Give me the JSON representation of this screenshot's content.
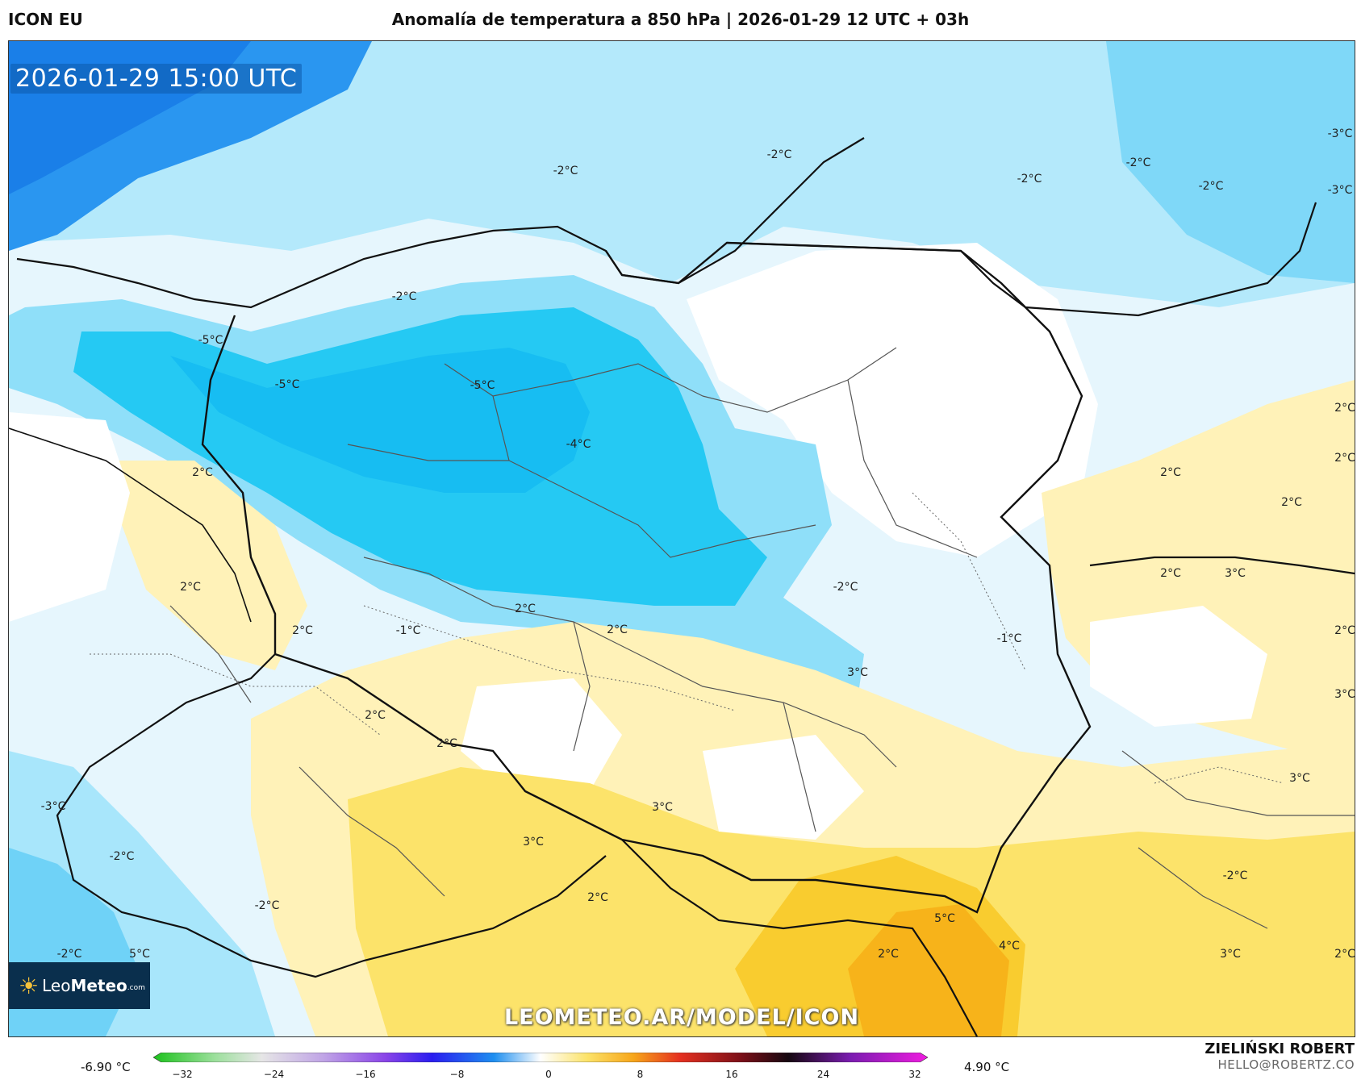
{
  "header": {
    "model": "ICON EU",
    "title": "Anomalía de temperatura a 850 hPa | 2026-01-29 12 UTC + 03h"
  },
  "map": {
    "valid_time": "2026-01-29 15:00 UTC",
    "watermark": "LEOMETEO.AR/MODEL/ICON",
    "logo": {
      "brand_a": "Leo",
      "brand_b": "Meteo",
      "brand_c": ".com"
    },
    "contour_labels": [
      {
        "text": "-2°C"
      },
      {
        "text": "-2°C"
      },
      {
        "text": "-2°C"
      },
      {
        "text": "-2°C"
      },
      {
        "text": "-2°C"
      },
      {
        "text": "-3°C"
      },
      {
        "text": "-3°C"
      },
      {
        "text": "-2°C"
      },
      {
        "text": "-5°C"
      },
      {
        "text": "-5°C"
      },
      {
        "text": "-5°C"
      },
      {
        "text": "-4°C"
      },
      {
        "text": "2°C"
      },
      {
        "text": "2°C"
      },
      {
        "text": "2°C"
      },
      {
        "text": "2°C"
      },
      {
        "text": "2°C"
      },
      {
        "text": "2°C"
      },
      {
        "text": "2°C"
      },
      {
        "text": "-1°C"
      },
      {
        "text": "-2°C"
      },
      {
        "text": "-1°C"
      },
      {
        "text": "3°C"
      },
      {
        "text": "2°C"
      },
      {
        "text": "2°C"
      },
      {
        "text": "2°C"
      },
      {
        "text": "2°C"
      },
      {
        "text": "2°C"
      },
      {
        "text": "3°C"
      },
      {
        "text": "2°C"
      },
      {
        "text": "3°C"
      },
      {
        "text": "3°C"
      },
      {
        "text": "3°C"
      },
      {
        "text": "3°C"
      },
      {
        "text": "2°C"
      },
      {
        "text": "-2°C"
      },
      {
        "text": "-3°C"
      },
      {
        "text": "-2°C"
      },
      {
        "text": "-2°C"
      },
      {
        "text": "-2°C"
      },
      {
        "text": "5°C"
      },
      {
        "text": "5°C"
      },
      {
        "text": "4°C"
      },
      {
        "text": "2°C"
      },
      {
        "text": "3°C"
      },
      {
        "text": "2°C"
      }
    ]
  },
  "colorbar": {
    "min_label": "-6.90 °C",
    "max_label": "4.90 °C",
    "ticks": [
      "−32",
      "−24",
      "−16",
      "−8",
      "0",
      "8",
      "16",
      "24",
      "32"
    ]
  },
  "author": {
    "name": "ZIELIŃSKI ROBERT",
    "email": "HELLO@ROBERTZ.CO"
  },
  "colors": {
    "deep_blue": "#1a8ff0",
    "mid_blue": "#28c8f5",
    "light_blue": "#a8e6fb",
    "pale_blue": "#dff4fd",
    "pale_yellow": "#fff2b8",
    "yellow": "#fce36a",
    "gold": "#f9cc2f",
    "orange": "#f7b31a"
  }
}
